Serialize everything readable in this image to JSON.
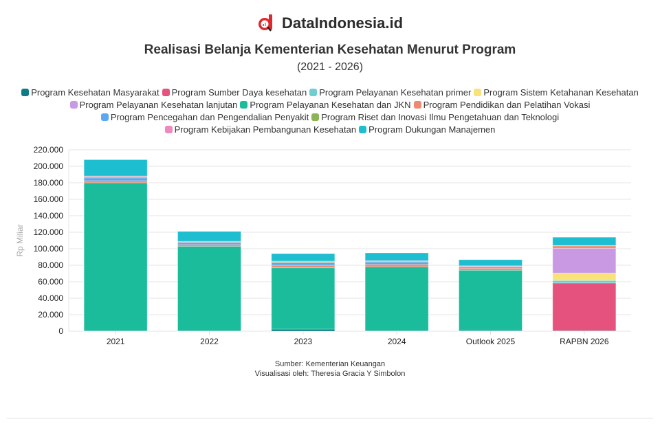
{
  "brand": {
    "name": "DataIndonesia.id",
    "logo_icon": "magnifier-d-logo"
  },
  "chart_data": {
    "type": "bar",
    "stacked": true,
    "title": "Realisasi Belanja Kementerian Kesehatan Menurut Program",
    "subtitle": "(2021 - 2026)",
    "xlabel": "",
    "ylabel": "Rp Miliar",
    "ylim": [
      0,
      220000
    ],
    "yticks": [
      "0",
      "20.000",
      "40.000",
      "60.000",
      "80.000",
      "100.000",
      "120.000",
      "140.000",
      "160.000",
      "180.000",
      "200.000",
      "220.000"
    ],
    "ytick_values": [
      0,
      20000,
      40000,
      60000,
      80000,
      100000,
      120000,
      140000,
      160000,
      180000,
      200000,
      220000
    ],
    "grid": true,
    "legend_position": "top",
    "categories": [
      "2021",
      "2022",
      "2023",
      "2024",
      "Outlook 2025",
      "RAPBN 2026"
    ],
    "series": [
      {
        "name": "Program Kesehatan Masyarakat",
        "color": "#0e7c86",
        "values": [
          500,
          500,
          2500,
          500,
          1000,
          500
        ]
      },
      {
        "name": "Program Sumber Daya kesehatan",
        "color": "#e5527e",
        "values": [
          0,
          0,
          0,
          0,
          0,
          58000
        ]
      },
      {
        "name": "Program Pelayanan Kesehatan primer",
        "color": "#6fcfd0",
        "values": [
          0,
          0,
          0,
          0,
          0,
          3000
        ]
      },
      {
        "name": "Program Sistem Ketahanan Kesehatan",
        "color": "#f9e27a",
        "values": [
          0,
          0,
          0,
          0,
          0,
          9000
        ]
      },
      {
        "name": "Program Pelayanan Kesehatan lanjutan",
        "color": "#c99ae3",
        "values": [
          0,
          0,
          0,
          0,
          0,
          30000
        ]
      },
      {
        "name": "Program Pelayanan Kesehatan dan JKN",
        "color": "#1abc9c",
        "values": [
          179500,
          102500,
          74500,
          77500,
          73000,
          0
        ]
      },
      {
        "name": "Program Pendidikan dan Pelatihan Vokasi",
        "color": "#ef8a70",
        "values": [
          2500,
          2000,
          3000,
          3000,
          2500,
          3000
        ]
      },
      {
        "name": "Program Pencegahan dan Pengendalian Penyakit",
        "color": "#5aa9f0",
        "values": [
          3500,
          2500,
          3000,
          3000,
          1500,
          0
        ]
      },
      {
        "name": "Program Riset dan Inovasi Ilmu Pengetahuan dan Teknologi",
        "color": "#8bb454",
        "values": [
          1200,
          500,
          1000,
          500,
          500,
          0
        ]
      },
      {
        "name": "Program Kebijakan Pembangunan Kesehatan",
        "color": "#ee88c0",
        "values": [
          1000,
          1000,
          1000,
          1000,
          800,
          500
        ]
      },
      {
        "name": "Program Dukungan Manajemen",
        "color": "#1cbed0",
        "values": [
          19800,
          12000,
          9000,
          9500,
          7400,
          10000
        ]
      }
    ]
  },
  "footer": {
    "source": "Sumber: Kementerian Keuangan",
    "credit": "Visualisasi oleh: Theresia Gracia Y Simbolon"
  }
}
